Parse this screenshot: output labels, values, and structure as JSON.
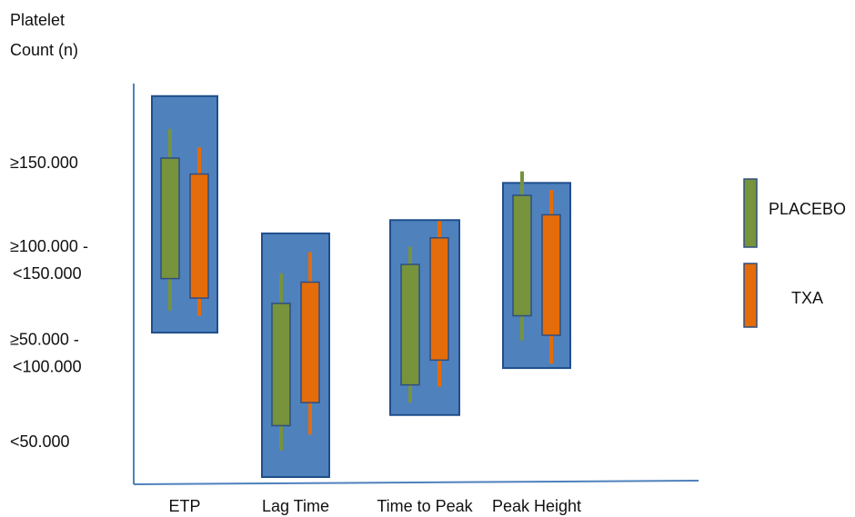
{
  "chart_data": {
    "type": "box",
    "ylabel": [
      "Platelet",
      "Count (n)"
    ],
    "y_ticks": [
      {
        "lines": [
          "≥150.000"
        ],
        "level": 3.55
      },
      {
        "lines": [
          "≥100.000  -",
          "<150.000"
        ],
        "level": 2.45
      },
      {
        "lines": [
          "≥50.000  -",
          "<100.000"
        ],
        "level": 1.4
      },
      {
        "lines": [
          "<50.000"
        ],
        "level": 0.4
      }
    ],
    "ylim": [
      0,
      4.4
    ],
    "categories": [
      "ETP",
      "Lag Time",
      "Time to Peak",
      "Peak Height"
    ],
    "envelope": [
      {
        "category": "ETP",
        "low": 1.63,
        "high": 4.3
      },
      {
        "category": "Lag Time",
        "low": 0,
        "high": 2.75
      },
      {
        "category": "Time to Peak",
        "low": 0.7,
        "high": 2.9
      },
      {
        "category": "Peak Height",
        "low": 1.23,
        "high": 3.32
      }
    ],
    "series": [
      {
        "name": "PLACEBO",
        "color": "#77933C",
        "boxes": [
          {
            "category": "ETP",
            "whisker_low": 1.88,
            "q1": 2.24,
            "q3": 3.6,
            "whisker_high": 3.93
          },
          {
            "category": "Lag Time",
            "whisker_low": 0.3,
            "q1": 0.58,
            "q3": 1.96,
            "whisker_high": 2.3
          },
          {
            "category": "Time to Peak",
            "whisker_low": 0.84,
            "q1": 1.04,
            "q3": 2.4,
            "whisker_high": 2.6
          },
          {
            "category": "Peak Height",
            "whisker_low": 1.54,
            "q1": 1.82,
            "q3": 3.18,
            "whisker_high": 3.45
          }
        ]
      },
      {
        "name": "TXA",
        "color": "#E46C0A",
        "boxes": [
          {
            "category": "ETP",
            "whisker_low": 1.82,
            "q1": 2.02,
            "q3": 3.42,
            "whisker_high": 3.72
          },
          {
            "category": "Lag Time",
            "whisker_low": 0.48,
            "q1": 0.84,
            "q3": 2.2,
            "whisker_high": 2.54
          },
          {
            "category": "Time to Peak",
            "whisker_low": 1.02,
            "q1": 1.32,
            "q3": 2.7,
            "whisker_high": 2.89
          },
          {
            "category": "Peak Height",
            "whisker_low": 1.28,
            "q1": 1.6,
            "q3": 2.96,
            "whisker_high": 3.24
          }
        ]
      }
    ],
    "envelope_color": "#4F81BD",
    "envelope_border": "#1F4E8C",
    "legend": {
      "position": "right"
    },
    "grid": false
  }
}
